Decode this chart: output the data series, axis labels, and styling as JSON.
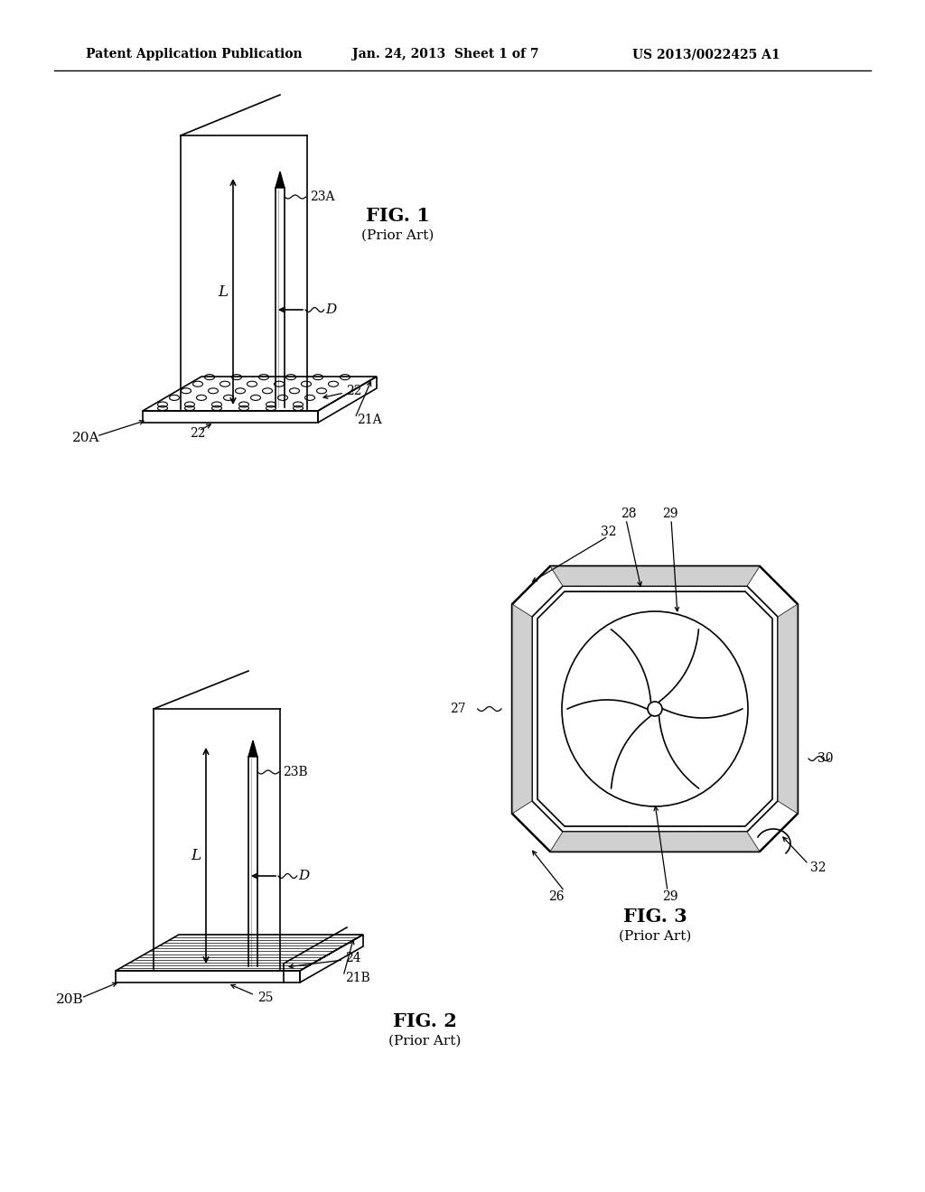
{
  "background_color": "#ffffff",
  "header_text": "Patent Application Publication",
  "header_date": "Jan. 24, 2013  Sheet 1 of 7",
  "header_patent": "US 2013/0022425 A1",
  "fig1_label": "FIG. 1",
  "fig1_sub": "(Prior Art)",
  "fig2_label": "FIG. 2",
  "fig2_sub": "(Prior Art)",
  "fig3_label": "FIG. 3",
  "fig3_sub": "(Prior Art)"
}
